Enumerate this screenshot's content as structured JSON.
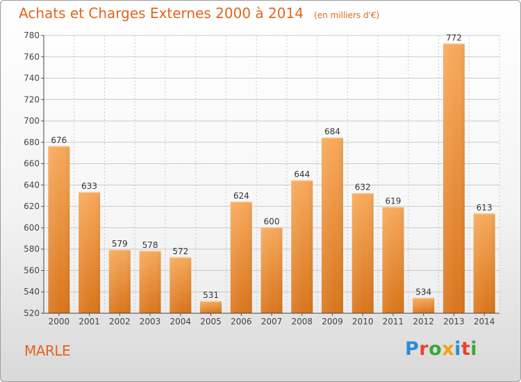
{
  "header": {
    "title": "Achats et Charges Externes 2000 à 2014",
    "unit": "(en milliers d'€)"
  },
  "footer": {
    "commune": "MARLE",
    "logo": "Proxiti",
    "logo_colors": [
      "#2a8bd6",
      "#e8452c",
      "#3aa63a",
      "#f2a10f",
      "#2a8bd6",
      "#e8452c",
      "#3aa63a"
    ]
  },
  "colors": {
    "bar_light": "#f7a95a",
    "bar_dark": "#d9751c",
    "title": "#e1651d",
    "grid": "#c8c8c8"
  },
  "chart_data": {
    "type": "bar",
    "title": "Achats et Charges Externes 2000 à 2014",
    "subtitle": "(en milliers d'€)",
    "xlabel": "",
    "ylabel": "",
    "categories": [
      "2000",
      "2001",
      "2002",
      "2003",
      "2004",
      "2005",
      "2006",
      "2007",
      "2008",
      "2009",
      "2010",
      "2011",
      "2012",
      "2013",
      "2014"
    ],
    "values": [
      676,
      633,
      579,
      578,
      572,
      531,
      624,
      600,
      644,
      684,
      632,
      619,
      534,
      772,
      613
    ],
    "ylim": [
      520,
      780
    ],
    "yticks": [
      520,
      540,
      560,
      580,
      600,
      620,
      640,
      660,
      680,
      700,
      720,
      740,
      760,
      780
    ],
    "grid": true,
    "legend": "none"
  }
}
